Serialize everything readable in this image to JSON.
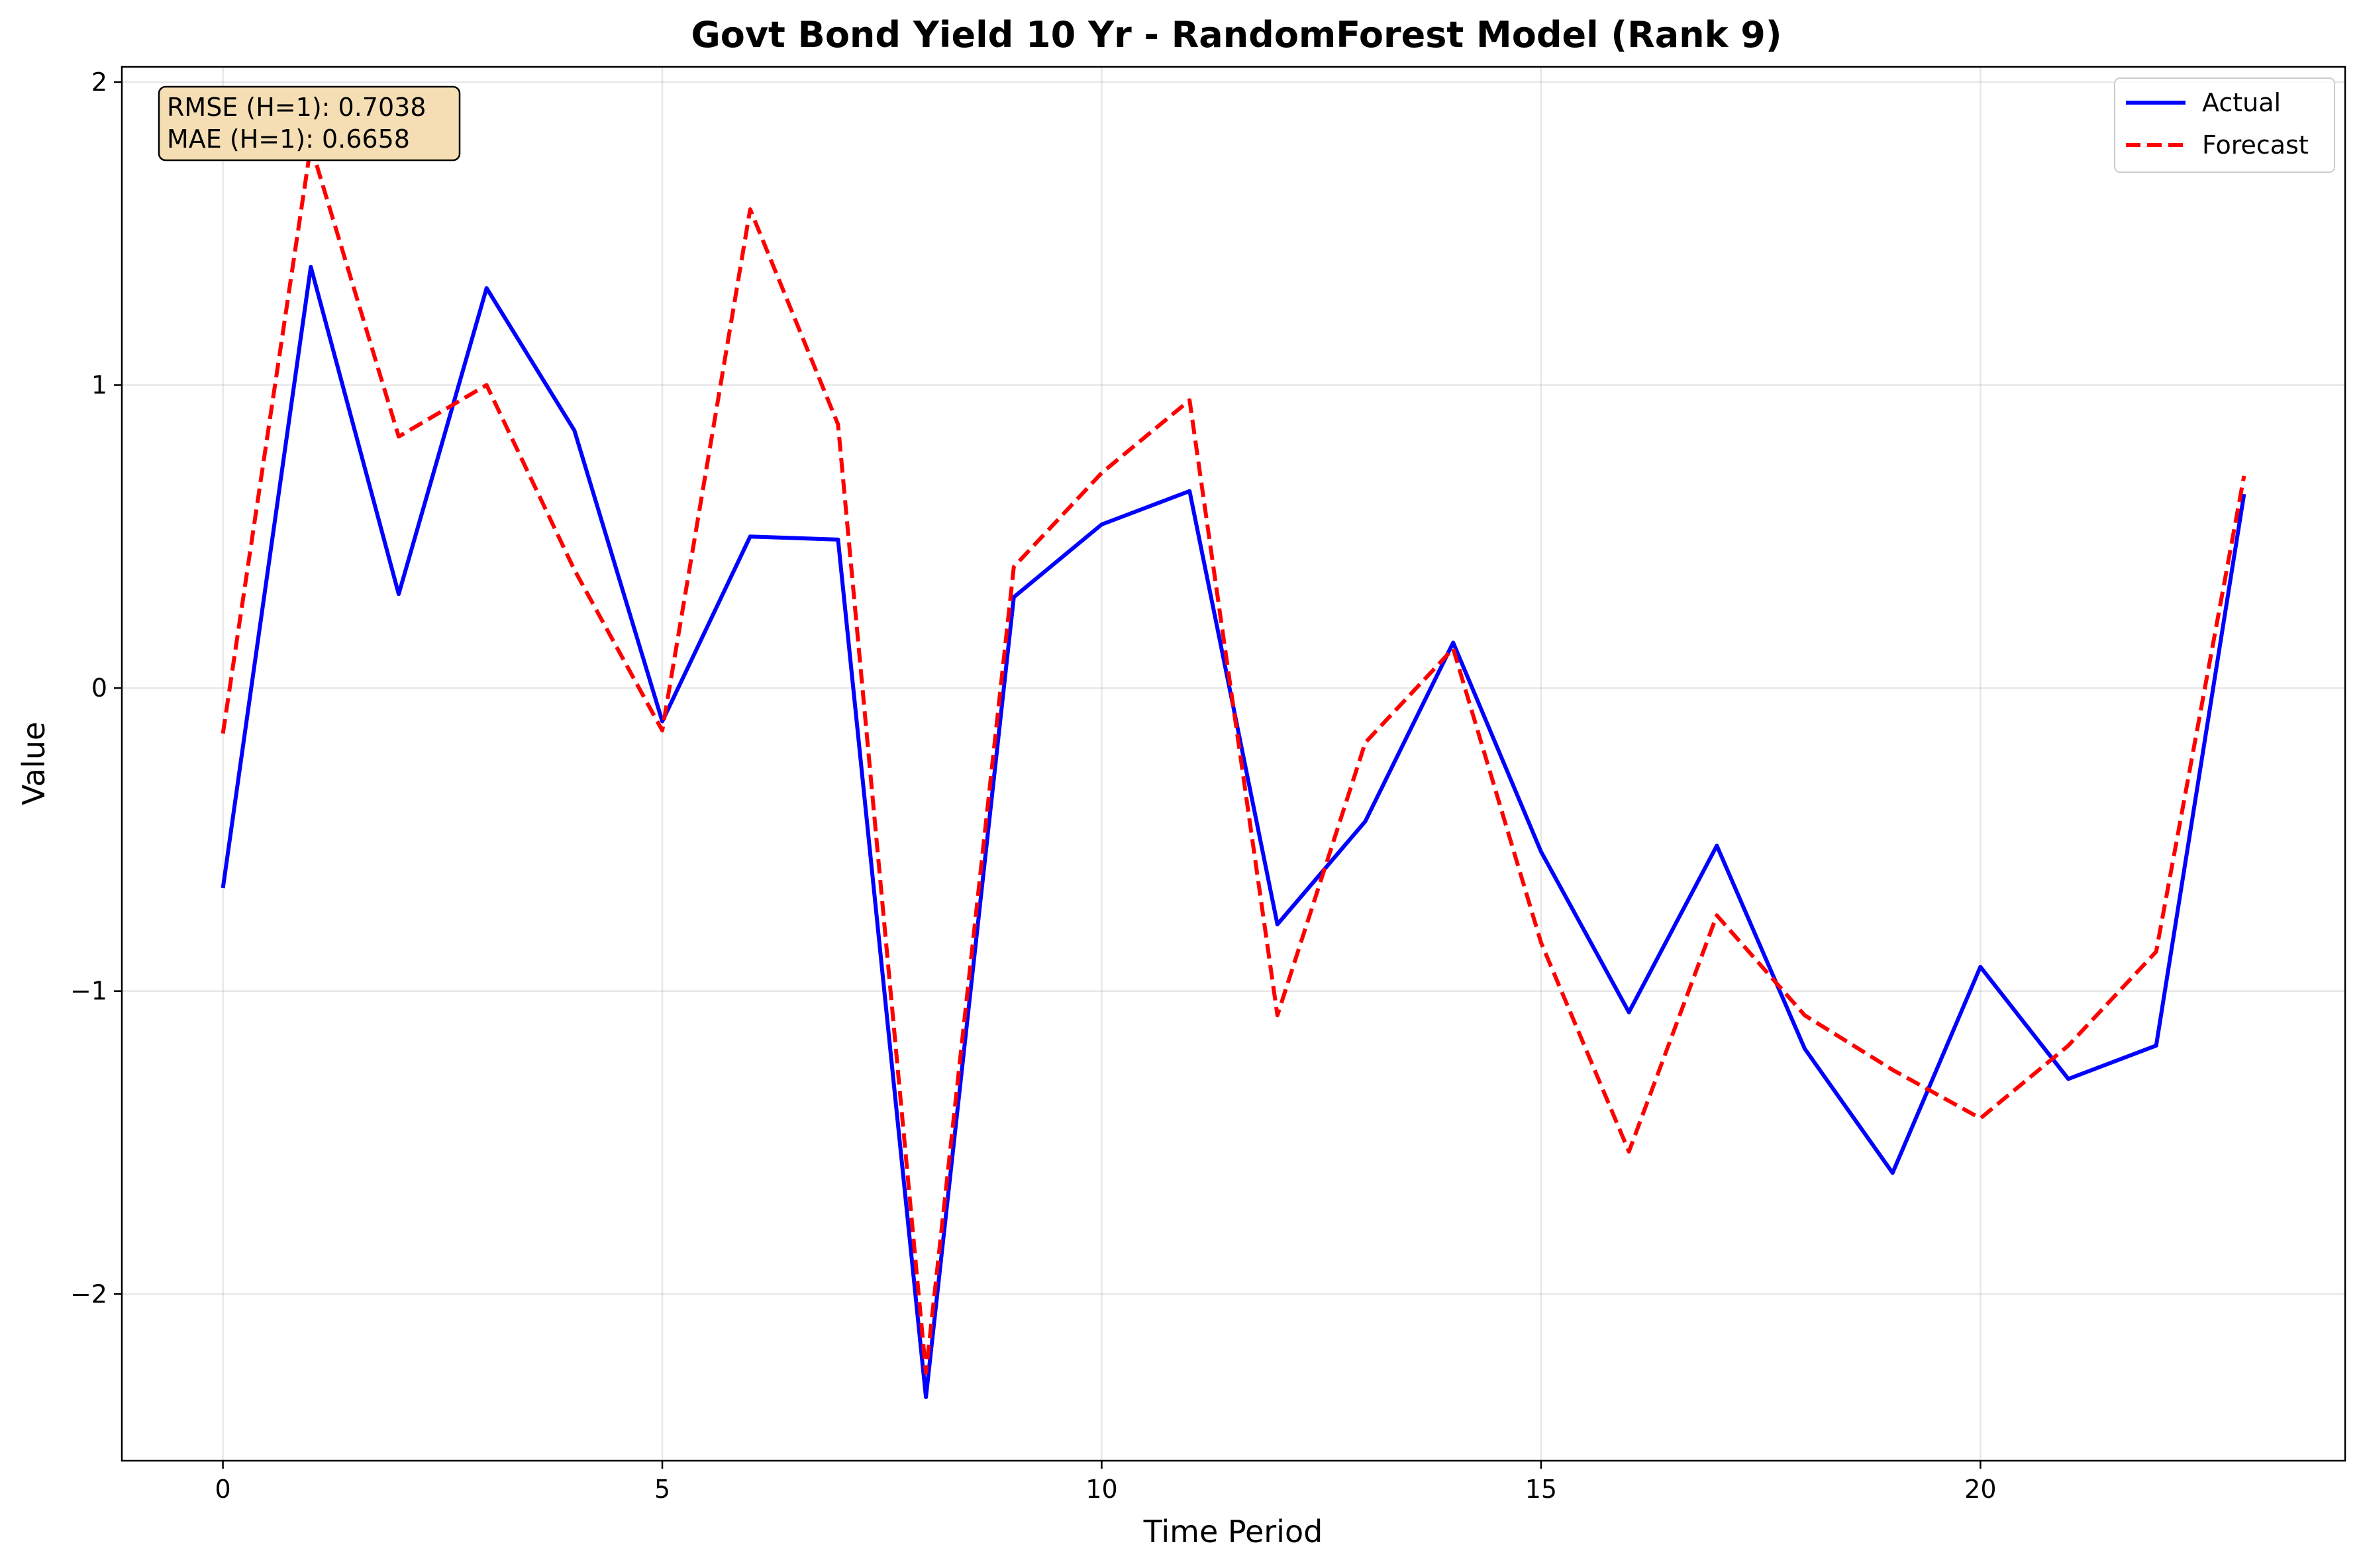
{
  "chart_data": {
    "type": "line",
    "title": "Govt Bond Yield 10 Yr - RandomForest Model (Rank 9)",
    "xlabel": "Time Period",
    "ylabel": "Value",
    "xlim": [
      -1.15,
      24.15
    ],
    "ylim": [
      -2.55,
      2.05
    ],
    "xticks": [
      0,
      5,
      10,
      15,
      20
    ],
    "yticks": [
      -2,
      -1,
      0,
      1,
      2
    ],
    "xtick_labels": [
      "0",
      "5",
      "10",
      "15",
      "20"
    ],
    "ytick_labels": [
      "−2",
      "−1",
      "0",
      "1",
      "2"
    ],
    "grid": true,
    "legend_position": "top-right",
    "x": [
      0,
      1,
      2,
      3,
      4,
      5,
      6,
      7,
      8,
      9,
      10,
      11,
      12,
      13,
      14,
      15,
      16,
      17,
      18,
      19,
      20,
      21,
      22,
      23
    ],
    "series": [
      {
        "name": "Actual",
        "color": "#0000ff",
        "style": "solid",
        "values": [
          -0.66,
          1.39,
          0.31,
          1.32,
          0.85,
          -0.11,
          0.5,
          0.49,
          -2.34,
          0.3,
          0.54,
          0.65,
          -0.78,
          -0.44,
          0.15,
          -0.54,
          -1.07,
          -0.52,
          -1.19,
          -1.6,
          -0.92,
          -1.29,
          -1.18,
          0.64
        ]
      },
      {
        "name": "Forecast",
        "color": "#ff0000",
        "style": "dashed",
        "values": [
          -0.15,
          1.79,
          0.83,
          1.0,
          0.39,
          -0.14,
          1.58,
          0.87,
          -2.26,
          0.4,
          0.71,
          0.95,
          -1.08,
          -0.18,
          0.13,
          -0.84,
          -1.53,
          -0.75,
          -1.08,
          -1.26,
          -1.42,
          -1.18,
          -0.87,
          0.7
        ]
      }
    ],
    "annotation": {
      "lines": [
        "RMSE (H=1): 0.7038",
        "MAE (H=1): 0.6658"
      ],
      "background": "#f5deb3",
      "position": "top-left"
    }
  }
}
